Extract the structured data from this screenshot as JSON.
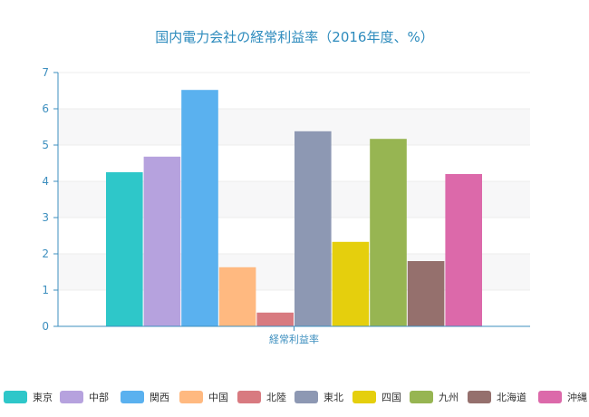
{
  "chart_data": {
    "type": "bar",
    "title": "国内電力会社の経常利益率（2016年度、%）",
    "categories": [
      "経常利益率"
    ],
    "xlabel": "",
    "ylabel": "",
    "ylim": [
      0,
      7
    ],
    "yticks": [
      0,
      1,
      2,
      3,
      4,
      5,
      6,
      7
    ],
    "grid": true,
    "legend_position": "bottom",
    "series": [
      {
        "name": "東京",
        "values": [
          4.25
        ],
        "color": "#2ec7c9"
      },
      {
        "name": "中部",
        "values": [
          4.68
        ],
        "color": "#b6a2de"
      },
      {
        "name": "関西",
        "values": [
          6.52
        ],
        "color": "#5ab1ef"
      },
      {
        "name": "中国",
        "values": [
          1.63
        ],
        "color": "#ffb980"
      },
      {
        "name": "北陸",
        "values": [
          0.38
        ],
        "color": "#d87a80"
      },
      {
        "name": "東北",
        "values": [
          5.38
        ],
        "color": "#8d98b3"
      },
      {
        "name": "四国",
        "values": [
          2.33
        ],
        "color": "#e5cf0d"
      },
      {
        "name": "九州",
        "values": [
          5.17
        ],
        "color": "#97b552"
      },
      {
        "name": "北海道",
        "values": [
          1.8
        ],
        "color": "#95706d"
      },
      {
        "name": "沖縄",
        "values": [
          4.2
        ],
        "color": "#dc69aa"
      }
    ]
  }
}
